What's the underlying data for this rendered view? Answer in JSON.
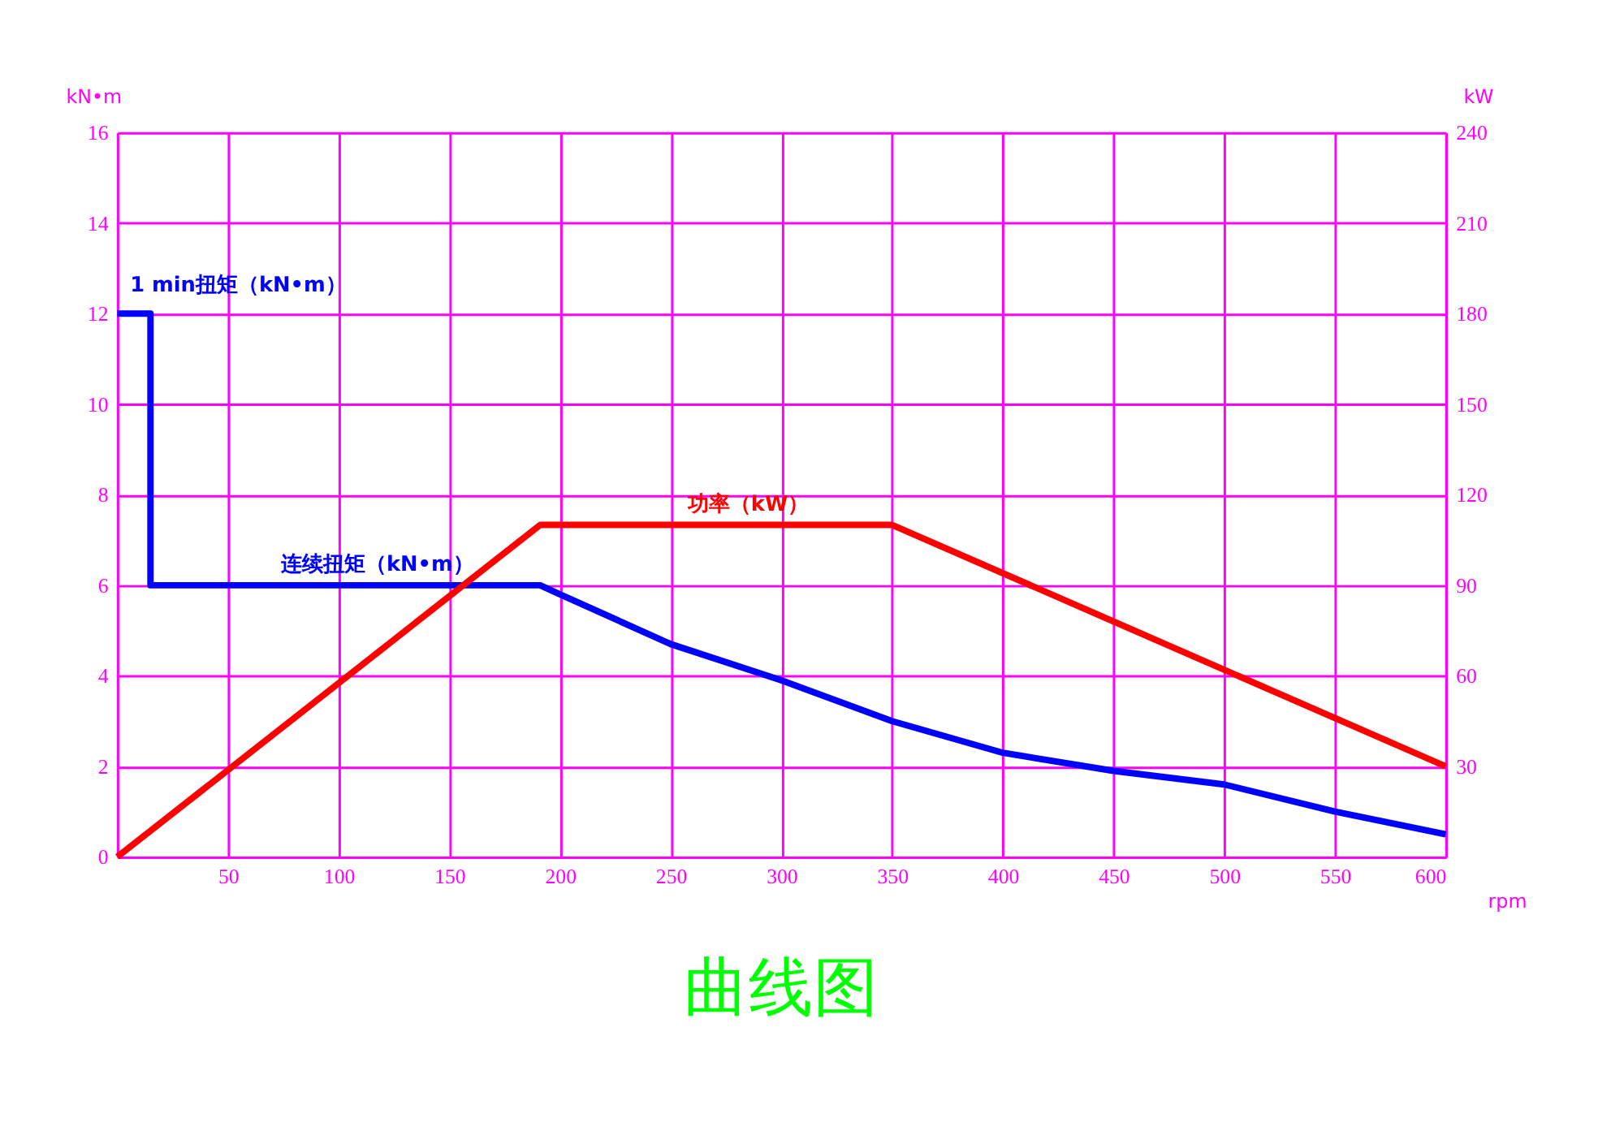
{
  "chart_data": {
    "type": "line",
    "title": "曲线图",
    "xlabel": "rpm",
    "ylabel": "kN•m",
    "y2label": "kW",
    "xlim": [
      0,
      600
    ],
    "xticks": [
      50,
      100,
      150,
      200,
      250,
      300,
      350,
      400,
      450,
      500,
      550,
      600
    ],
    "ylim": [
      0,
      16
    ],
    "yticks": [
      0,
      2,
      4,
      6,
      8,
      10,
      12,
      14,
      16
    ],
    "y2lim": [
      0,
      240
    ],
    "y2ticks": [
      30,
      60,
      90,
      120,
      150,
      180,
      210,
      240
    ],
    "grid": true,
    "marker": "none",
    "line_style": "solid",
    "annotations": [
      {
        "text": "1 min扭矩（kN•m）",
        "x": 0,
        "y": 12
      }
    ],
    "series": [
      {
        "name": "连续扭矩（kN•m）",
        "color": "#0000ff",
        "x": [
          0,
          15,
          15,
          191,
          200,
          250,
          300,
          350,
          400,
          450,
          500,
          550,
          600
        ],
        "values": [
          12,
          12,
          6,
          6,
          5.8,
          4.7,
          3.9,
          3.0,
          2.3,
          1.9,
          1.6,
          1.0,
          0.5
        ]
      },
      {
        "name": "功率（kW）",
        "color": "#ff0000",
        "axis": "y2",
        "x": [
          0,
          191,
          350,
          600
        ],
        "values": [
          0,
          110,
          110,
          30
        ]
      }
    ]
  }
}
